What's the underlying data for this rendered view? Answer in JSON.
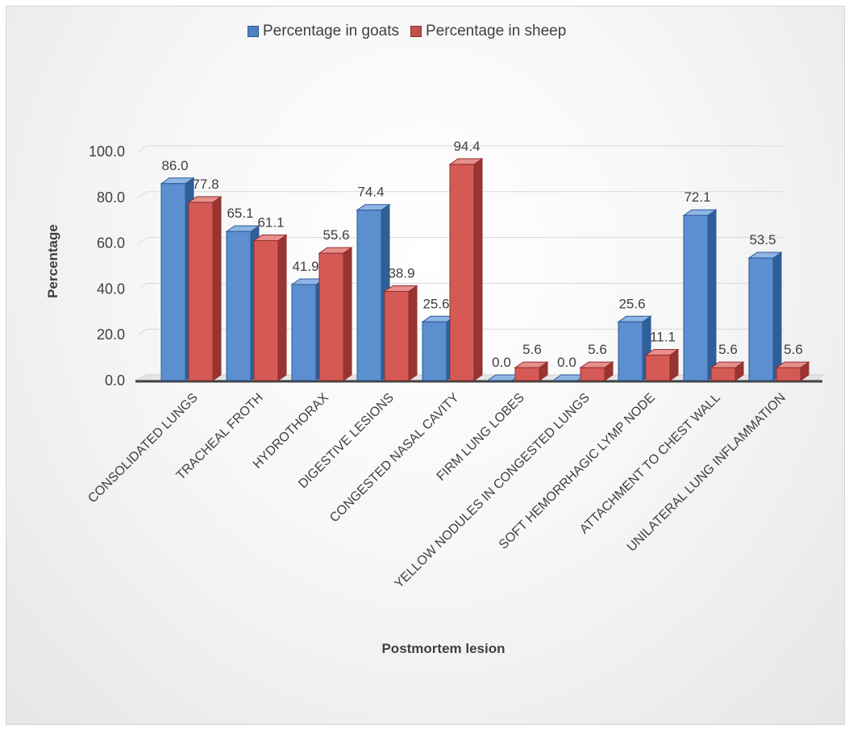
{
  "chart_data": {
    "type": "bar",
    "title": "",
    "xlabel": "Postmortem lesion",
    "ylabel": "Percentage",
    "ylim": [
      0,
      100
    ],
    "yticks": [
      "0.0",
      "20.0",
      "40.0",
      "60.0",
      "80.0",
      "100.0"
    ],
    "grid": true,
    "legend_position": "top",
    "categories": [
      "CONSOLIDATED LUNGS",
      "TRACHEAL FROTH",
      "HYDROTHORAX",
      "DIGESTIVE LESIONS",
      "CONGESTED NASAL CAVITY",
      "FIRM LUNG LOBES",
      "YELLOW NODULES IN CONGESTED LUNGS",
      "SOFT HEMORRHAGIC LYMP NODE",
      "ATTACHMENT TO CHEST WALL",
      "UNILATERAL LUNG INFLAMMATION"
    ],
    "series": [
      {
        "name": "Percentage in goats",
        "color": "#4f81bd",
        "values": [
          86.0,
          65.1,
          41.9,
          74.4,
          25.6,
          0.0,
          0.0,
          25.6,
          72.1,
          53.5
        ],
        "labels": [
          "86.0",
          "65.1",
          "41.9",
          "74.4",
          "25.6",
          "0.0",
          "0.0",
          "25.6",
          "72.1",
          "53.5"
        ]
      },
      {
        "name": "Percentage in sheep",
        "color": "#c0504d",
        "values": [
          77.8,
          61.1,
          55.6,
          38.9,
          94.4,
          5.6,
          5.6,
          11.1,
          5.6,
          5.6
        ],
        "labels": [
          "77.8",
          "61.1",
          "55.6",
          "38.9",
          "94.4",
          "5.6",
          "5.6",
          "11.1",
          "5.6",
          "5.6"
        ]
      }
    ]
  }
}
